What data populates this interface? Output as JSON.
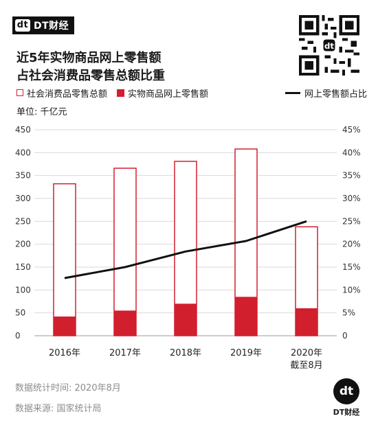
{
  "header": {
    "brand": "DT财经",
    "brand_mark": "dt",
    "qr_icon": "qr-code-icon"
  },
  "title": {
    "line1": "近5年实物商品网上零售额",
    "line2": "占社会消费品零售总额比重"
  },
  "legend": {
    "total": "社会消费品零售总额",
    "online": "实物商品网上零售额",
    "ratio": "网上零售额占比"
  },
  "unit": "单位: 千亿元",
  "colors": {
    "accent": "#d21f2e",
    "line": "#111111",
    "grid": "#d9d9d9"
  },
  "chart_data": {
    "type": "bar",
    "categories": [
      "2016年",
      "2017年",
      "2018年",
      "2019年",
      "2020年\n截至8月"
    ],
    "series": [
      {
        "name": "社会消费品零售总额",
        "type": "bar",
        "style": "outline",
        "values": [
          332,
          366,
          381,
          408,
          238
        ]
      },
      {
        "name": "实物商品网上零售额",
        "type": "bar",
        "style": "filled",
        "values": [
          42,
          55,
          70,
          85,
          60
        ]
      },
      {
        "name": "网上零售额占比",
        "type": "line",
        "axis": "right",
        "values": [
          12.6,
          15.0,
          18.4,
          20.7,
          25.0
        ]
      }
    ],
    "y_left": {
      "min": 0,
      "max": 450,
      "ticks": [
        "0",
        "50",
        "100",
        "150",
        "200",
        "250",
        "300",
        "350",
        "400",
        "450"
      ]
    },
    "y_right": {
      "min": 0,
      "max": 45,
      "ticks": [
        "0",
        "5%",
        "10%",
        "15%",
        "20%",
        "25%",
        "30%",
        "35%",
        "40%",
        "45%"
      ]
    },
    "grid": true,
    "legend_position": "top"
  },
  "footer": {
    "time": "数据统计时间: 2020年8月",
    "source": "数据来源: 国家统计局"
  }
}
